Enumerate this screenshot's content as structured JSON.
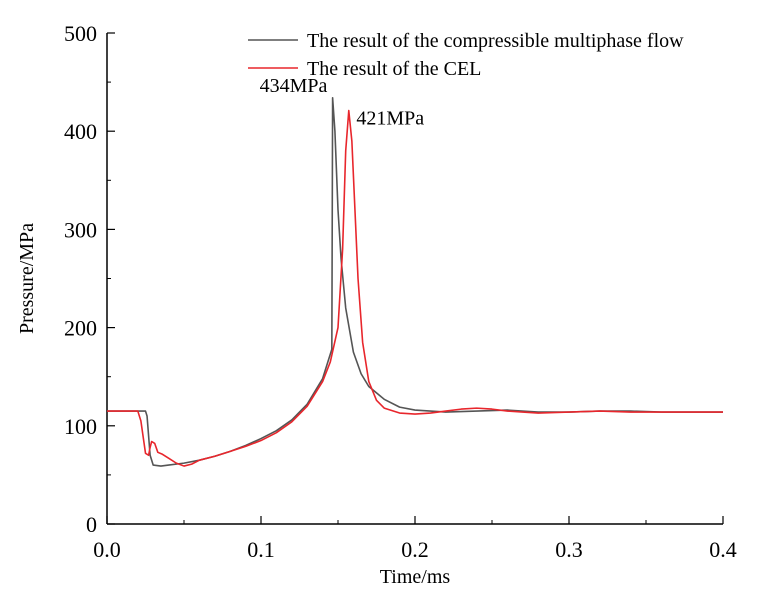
{
  "chart_data": {
    "type": "line",
    "title": "",
    "xlabel": "Time/ms",
    "ylabel": "Pressure/MPa",
    "xlim": [
      0.0,
      0.4
    ],
    "ylim": [
      0,
      500
    ],
    "x_ticks": [
      0.0,
      0.1,
      0.2,
      0.3,
      0.4
    ],
    "x_tick_labels": [
      "0.0",
      "0.1",
      "0.2",
      "0.3",
      "0.4"
    ],
    "y_ticks": [
      0,
      100,
      200,
      300,
      400,
      500
    ],
    "y_tick_labels": [
      "0",
      "100",
      "200",
      "300",
      "400",
      "500"
    ],
    "grid": false,
    "legend_position": "top-right",
    "series": [
      {
        "name": "The result of the compressible multiphase flow",
        "color": "#555555",
        "points": [
          [
            0.0,
            115
          ],
          [
            0.025,
            115
          ],
          [
            0.026,
            110
          ],
          [
            0.028,
            70
          ],
          [
            0.03,
            60
          ],
          [
            0.035,
            59
          ],
          [
            0.04,
            60
          ],
          [
            0.05,
            62
          ],
          [
            0.06,
            65
          ],
          [
            0.07,
            69
          ],
          [
            0.08,
            74
          ],
          [
            0.09,
            80
          ],
          [
            0.1,
            87
          ],
          [
            0.11,
            95
          ],
          [
            0.12,
            106
          ],
          [
            0.13,
            122
          ],
          [
            0.14,
            148
          ],
          [
            0.146,
            178
          ],
          [
            0.1465,
            434
          ],
          [
            0.148,
            400
          ],
          [
            0.15,
            320
          ],
          [
            0.152,
            270
          ],
          [
            0.155,
            220
          ],
          [
            0.16,
            175
          ],
          [
            0.165,
            153
          ],
          [
            0.17,
            140
          ],
          [
            0.18,
            127
          ],
          [
            0.19,
            119
          ],
          [
            0.2,
            116
          ],
          [
            0.22,
            114
          ],
          [
            0.24,
            115
          ],
          [
            0.26,
            116
          ],
          [
            0.28,
            114
          ],
          [
            0.3,
            114
          ],
          [
            0.32,
            115
          ],
          [
            0.34,
            115
          ],
          [
            0.36,
            114
          ],
          [
            0.4,
            114
          ]
        ]
      },
      {
        "name": "The result of the CEL",
        "color": "#e8262c",
        "points": [
          [
            0.0,
            115
          ],
          [
            0.02,
            115
          ],
          [
            0.022,
            105
          ],
          [
            0.025,
            72
          ],
          [
            0.027,
            70
          ],
          [
            0.028,
            78
          ],
          [
            0.029,
            84
          ],
          [
            0.031,
            82
          ],
          [
            0.033,
            73
          ],
          [
            0.036,
            71
          ],
          [
            0.04,
            67
          ],
          [
            0.045,
            62
          ],
          [
            0.05,
            59
          ],
          [
            0.055,
            61
          ],
          [
            0.06,
            65
          ],
          [
            0.07,
            69
          ],
          [
            0.08,
            74
          ],
          [
            0.09,
            79
          ],
          [
            0.1,
            85
          ],
          [
            0.11,
            93
          ],
          [
            0.12,
            104
          ],
          [
            0.13,
            120
          ],
          [
            0.14,
            145
          ],
          [
            0.145,
            165
          ],
          [
            0.15,
            200
          ],
          [
            0.153,
            280
          ],
          [
            0.155,
            380
          ],
          [
            0.157,
            421
          ],
          [
            0.159,
            390
          ],
          [
            0.161,
            320
          ],
          [
            0.163,
            250
          ],
          [
            0.166,
            185
          ],
          [
            0.17,
            145
          ],
          [
            0.175,
            126
          ],
          [
            0.18,
            118
          ],
          [
            0.19,
            113
          ],
          [
            0.2,
            112
          ],
          [
            0.21,
            113
          ],
          [
            0.22,
            115
          ],
          [
            0.23,
            117
          ],
          [
            0.24,
            118
          ],
          [
            0.25,
            117
          ],
          [
            0.26,
            115
          ],
          [
            0.27,
            114
          ],
          [
            0.28,
            113
          ],
          [
            0.3,
            114
          ],
          [
            0.32,
            115
          ],
          [
            0.34,
            114
          ],
          [
            0.4,
            114
          ]
        ]
      }
    ],
    "annotations": [
      {
        "text": "434MPa",
        "x": 0.147,
        "y": 434,
        "anchor": "end"
      },
      {
        "text": "421MPa",
        "x": 0.158,
        "y": 421,
        "anchor": "start"
      }
    ]
  }
}
